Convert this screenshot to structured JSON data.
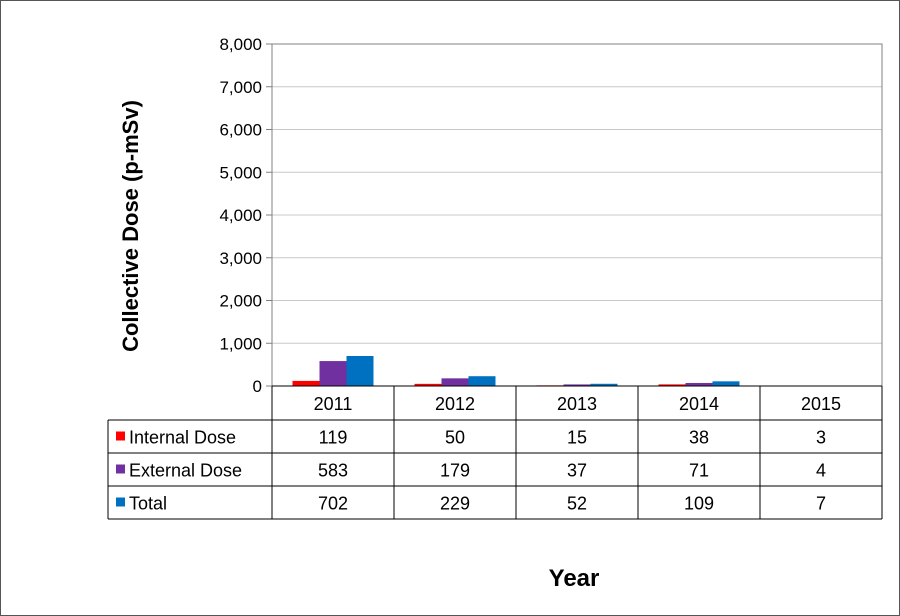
{
  "chart_data": {
    "type": "bar",
    "title": "",
    "xlabel": "Year",
    "ylabel": "Collective Dose (p-mSv)",
    "ylim": [
      0,
      8000
    ],
    "yticks": [
      0,
      1000,
      2000,
      3000,
      4000,
      5000,
      6000,
      7000,
      8000
    ],
    "ytick_labels": [
      "0",
      "1,000",
      "2,000",
      "3,000",
      "4,000",
      "5,000",
      "6,000",
      "7,000",
      "8,000"
    ],
    "grid": true,
    "legend": "data-table",
    "categories": [
      "2011",
      "2012",
      "2013",
      "2014",
      "2015"
    ],
    "series": [
      {
        "name": "Internal Dose",
        "color": "#ff0000",
        "values": [
          119,
          50,
          15,
          38,
          3
        ]
      },
      {
        "name": "External Dose",
        "color": "#7030a0",
        "values": [
          583,
          179,
          37,
          71,
          4
        ]
      },
      {
        "name": "Total",
        "color": "#0070c0",
        "values": [
          702,
          229,
          52,
          109,
          7
        ]
      }
    ]
  }
}
